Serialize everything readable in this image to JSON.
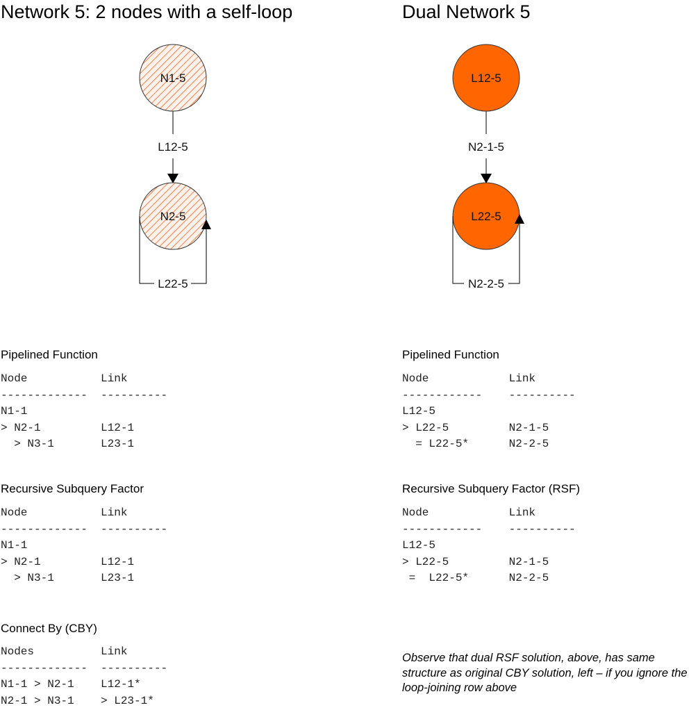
{
  "left": {
    "title": "Network 5: 2 nodes with a self-loop",
    "nodes": [
      "N1-5",
      "N2-5"
    ],
    "link": "L12-5",
    "self_loop": "L22-5",
    "node_fill": "hatched #f26522",
    "sections": [
      {
        "heading": "Pipelined Function",
        "header": "Node           Link",
        "rule": "-------------  ----------",
        "rows": [
          "N1-1",
          "> N2-1         L12-1",
          "  > N3-1       L23-1"
        ]
      },
      {
        "heading": "Recursive Subquery Factor",
        "header": "Node           Link",
        "rule": "-------------  ----------",
        "rows": [
          "N1-1",
          "> N2-1         L12-1",
          "  > N3-1       L23-1"
        ]
      },
      {
        "heading": "Connect By (CBY)",
        "header": "Nodes          Link",
        "rule": "-------------  ----------",
        "rows": [
          "N1-1 > N2-1    L12-1*",
          "N2-1 > N3-1    > L23-1*"
        ]
      }
    ]
  },
  "right": {
    "title": "Dual Network 5",
    "nodes": [
      "L12-5",
      "L22-5"
    ],
    "link": "N2-1-5",
    "self_loop": "N2-2-5",
    "node_fill": "#ff6600",
    "sections": [
      {
        "heading": "Pipelined Function",
        "header": "Node            Link",
        "rule": "------------    ----------",
        "rows": [
          "L12-5",
          "> L22-5         N2-1-5",
          "  = L22-5*      N2-2-5"
        ]
      },
      {
        "heading": "Recursive Subquery Factor (RSF)",
        "header": "Node            Link",
        "rule": "------------    ----------",
        "rows": [
          "L12-5",
          "> L22-5         N2-1-5",
          " =  L22-5*      N2-2-5"
        ]
      }
    ],
    "note": "Observe that dual RSF solution, above, has same structure as original CBY solution, left – if you ignore the loop-joining row above"
  }
}
